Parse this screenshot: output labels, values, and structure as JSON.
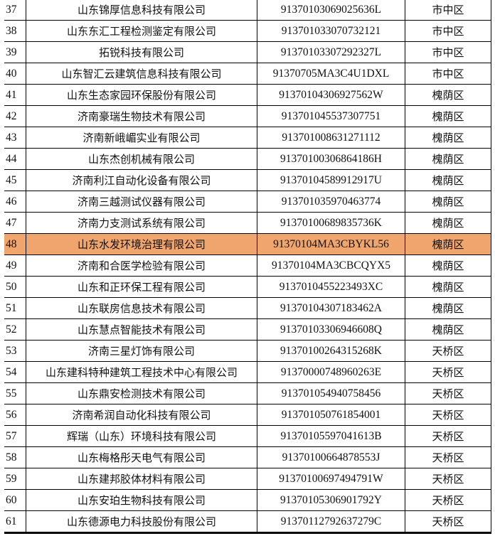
{
  "highlight_color": "#f0a56c",
  "rows": [
    {
      "no": "37",
      "name": "山东锦厚信息科技有限公司",
      "code": "91370103069025636L",
      "district": "市中区"
    },
    {
      "no": "38",
      "name": "山东东汇工程检测鉴定有限公司",
      "code": "913701033070732121",
      "district": "市中区"
    },
    {
      "no": "39",
      "name": "拓锐科技有限公司",
      "code": "91370103307292327L",
      "district": "市中区"
    },
    {
      "no": "40",
      "name": "山东智汇云建筑信息科技有限公司",
      "code": "91370705MA3C4U1DXL",
      "district": "市中区"
    },
    {
      "no": "41",
      "name": "山东生态家园环保股份有限公司",
      "code": "91370104306927562W",
      "district": "槐荫区"
    },
    {
      "no": "42",
      "name": "济南豪瑞生物技术有限公司",
      "code": "913701045537307751",
      "district": "槐荫区"
    },
    {
      "no": "43",
      "name": "济南新峨嵋实业有限公司",
      "code": "913701008631271112",
      "district": "槐荫区"
    },
    {
      "no": "44",
      "name": "山东杰创机械有限公司",
      "code": "91370100306864186H",
      "district": "槐荫区"
    },
    {
      "no": "45",
      "name": "济南利江自动化设备有限公司",
      "code": "91370104589912917U",
      "district": "槐荫区"
    },
    {
      "no": "46",
      "name": "济南三越测试仪器有限公司",
      "code": "913701035970463774",
      "district": "槐荫区"
    },
    {
      "no": "47",
      "name": "济南力支测试系统有限公司",
      "code": "91370100689835736K",
      "district": "槐荫区"
    },
    {
      "no": "48",
      "name": "山东水发环境治理有限公司",
      "code": "91370104MA3CBYKL56",
      "district": "槐荫区",
      "highlighted": true
    },
    {
      "no": "49",
      "name": "济南和合医学检验有限公司",
      "code": "91370104MA3CBCQYX5",
      "district": "槐荫区"
    },
    {
      "no": "50",
      "name": "山东和正环保工程有限公司",
      "code": "913701045522349 3XC",
      "district": "槐荫区"
    },
    {
      "no": "51",
      "name": "山东联房信息技术有限公司",
      "code": "91370104307183462A",
      "district": "槐荫区"
    },
    {
      "no": "52",
      "name": "山东慧点智能技术有限公司",
      "code": "91370103306946608Q",
      "district": "槐荫区"
    },
    {
      "no": "53",
      "name": "济南三星灯饰有限公司",
      "code": "91370100264315268K",
      "district": "天桥区"
    },
    {
      "no": "54",
      "name": "山东建科特种建筑工程技术中心有限公司",
      "code": "9137000074896026 3E",
      "district": "天桥区"
    },
    {
      "no": "55",
      "name": "山东鼎安检测技术有限公司",
      "code": "913701054940758456",
      "district": "天桥区"
    },
    {
      "no": "56",
      "name": "济南希润自动化科技有限公司",
      "code": "913701050761854001",
      "district": "天桥区"
    },
    {
      "no": "57",
      "name": "辉瑞（山东）环境科技有限公司",
      "code": "91370105597041613B",
      "district": "天桥区"
    },
    {
      "no": "58",
      "name": "山东梅格彤天电气有限公司",
      "code": "91370100664878553J",
      "district": "天桥区"
    },
    {
      "no": "59",
      "name": "山东建邦胶体材料有限公司",
      "code": "91370100697494791W",
      "district": "天桥区"
    },
    {
      "no": "60",
      "name": "山东安珀生物科技有限公司",
      "code": "91370105306901792Y",
      "district": "天桥区"
    },
    {
      "no": "61",
      "name": "山东德源电力科技股份有限公司",
      "code": "91370112792637279C",
      "district": "天桥区"
    }
  ]
}
